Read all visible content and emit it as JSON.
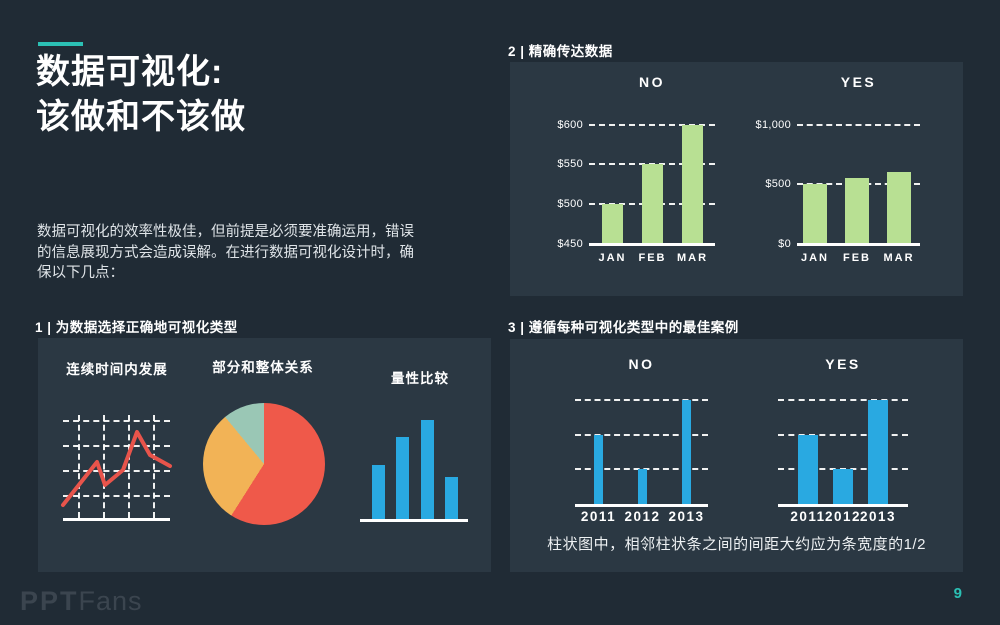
{
  "slide": {
    "background_color": "#202b35",
    "panel_color": "#2b3843",
    "accent_color": "#2bc0b4",
    "title_lines": [
      "数据可视化:",
      "该做和不该做"
    ],
    "intro_lines": [
      "数据可视化的效率性极佳，但前提是必须要准确运用，错误",
      "的信息展现方式会造成误解。在进行数据可视化设计时，确",
      "保以下几点："
    ],
    "page_number": "9",
    "logo": {
      "part1": "PPT",
      "part2": "Fans"
    }
  },
  "sections": [
    {
      "label": "1 | 为数据选择正确地可视化类型"
    },
    {
      "label": "2 | 精确传达数据"
    },
    {
      "label": "3 | 遵循每种可视化类型中的最佳案例",
      "caption": "柱状图中，相邻柱状条之间的间距大约应为条宽度的1/2"
    }
  ],
  "chart_data": [
    {
      "type": "line",
      "title": "连续时间内发展",
      "color": "#e8544b",
      "grid": true,
      "points": [
        [
          0,
          90
        ],
        [
          34,
          47
        ],
        [
          42,
          70
        ],
        [
          60,
          55
        ],
        [
          74,
          17
        ],
        [
          87,
          40
        ],
        [
          107,
          51
        ]
      ]
    },
    {
      "type": "pie",
      "title": "部分和整体关系",
      "slices": [
        {
          "color": "#ef594a",
          "percent": 59
        },
        {
          "color": "#f2b356",
          "percent": 30
        },
        {
          "color": "#9ac7b5",
          "percent": 11
        }
      ]
    },
    {
      "type": "bar",
      "title": "量性比较",
      "color": "#29a9e1",
      "values": [
        55,
        83,
        100,
        42
      ],
      "ymin": 0,
      "ymax": 100
    },
    {
      "type": "bar",
      "title": "NO",
      "color": "#b8e093",
      "categories": [
        "JAN",
        "FEB",
        "MAR"
      ],
      "values": [
        500,
        550,
        600
      ],
      "ymin": 450,
      "ymax": 600,
      "ylim": [
        450,
        600
      ],
      "yticks": [
        {
          "label": "$600",
          "value": 600
        },
        {
          "label": "$550",
          "value": 550
        },
        {
          "label": "$500",
          "value": 500
        }
      ],
      "baseline_label": "$450"
    },
    {
      "type": "bar",
      "title": "YES",
      "color": "#b8e093",
      "categories": [
        "JAN",
        "FEB",
        "MAR"
      ],
      "values": [
        500,
        550,
        600
      ],
      "ymin": 0,
      "ymax": 1000,
      "ylim": [
        0,
        1000
      ],
      "yticks": [
        {
          "label": "$1,000",
          "value": 1000
        },
        {
          "label": "$500",
          "value": 500
        }
      ],
      "baseline_label": "$0"
    },
    {
      "type": "bar",
      "title": "NO",
      "color": "#29a9e1",
      "categories": [
        "2011",
        "2012",
        "2013"
      ],
      "values": [
        2,
        1,
        3
      ],
      "ymin": 0,
      "ymax": 3,
      "yticks": [
        {
          "value": 1
        },
        {
          "value": 2
        },
        {
          "value": 3
        }
      ]
    },
    {
      "type": "bar",
      "title": "YES",
      "color": "#29a9e1",
      "categories": [
        "2011",
        "2012",
        "2013"
      ],
      "values": [
        2,
        1,
        3
      ],
      "ymin": 0,
      "ymax": 3,
      "yticks": [
        {
          "value": 1
        },
        {
          "value": 2
        },
        {
          "value": 3
        }
      ]
    }
  ]
}
